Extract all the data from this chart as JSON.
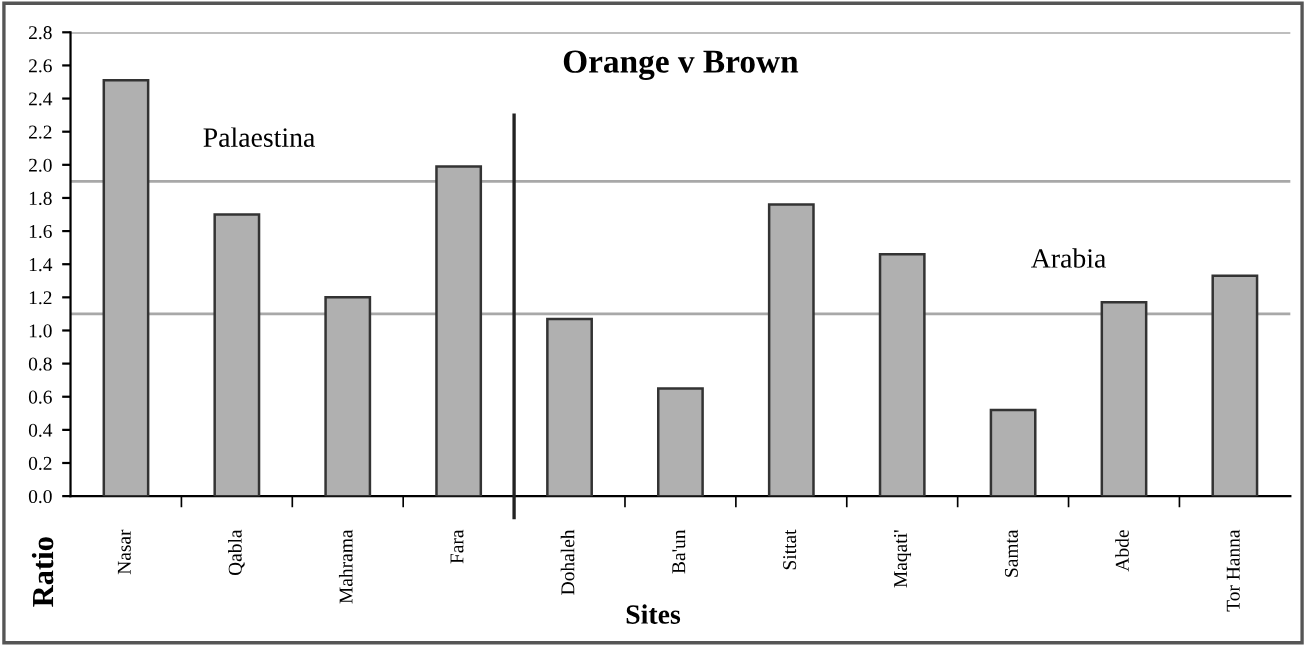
{
  "chart_data": {
    "type": "bar",
    "title": "Orange v Brown",
    "xlabel": "Sites",
    "ylabel": "Ratio",
    "categories": [
      "Nasar",
      "Qabla",
      "Mahrama",
      "Fara",
      "Dohaleh",
      "Ba'un",
      "Sittat",
      "Maqati'",
      "Samta",
      "Abde",
      "Tor Hanna"
    ],
    "values": [
      2.51,
      1.7,
      1.2,
      1.99,
      1.07,
      0.65,
      1.76,
      1.46,
      0.52,
      1.17,
      1.33
    ],
    "color": "#b0b0b0",
    "ylim": [
      0,
      2.8
    ],
    "yticks": [
      {
        "value": 0,
        "label": "0.0"
      },
      {
        "value": 0.2,
        "label": "0.2"
      },
      {
        "value": 0.4,
        "label": "0.4"
      },
      {
        "value": 0.6,
        "label": "0.6"
      },
      {
        "value": 0.8,
        "label": "0.8"
      },
      {
        "value": 1,
        "label": "1.0"
      },
      {
        "value": 1.2,
        "label": "1.2"
      },
      {
        "value": 1.4,
        "label": "1.4"
      },
      {
        "value": 1.6,
        "label": "1.6"
      },
      {
        "value": 1.8,
        "label": "1.8"
      },
      {
        "value": 2,
        "label": "2.0"
      },
      {
        "value": 2.2,
        "label": "2.2"
      },
      {
        "value": 2.4,
        "label": "2.4"
      },
      {
        "value": 2.6,
        "label": "2.6"
      },
      {
        "value": 2.8,
        "label": "2.8"
      }
    ],
    "ref_lines": [
      {
        "axis": "y",
        "value": 1.1,
        "color": "#a8a8a8"
      },
      {
        "axis": "y",
        "value": 1.9,
        "color": "#a8a8a8"
      },
      {
        "axis": "y",
        "value": 2.8,
        "color": "#a8a8a8"
      }
    ],
    "annotations": [
      "Palaestina",
      "Arabia"
    ],
    "grid": false,
    "legend": false
  }
}
